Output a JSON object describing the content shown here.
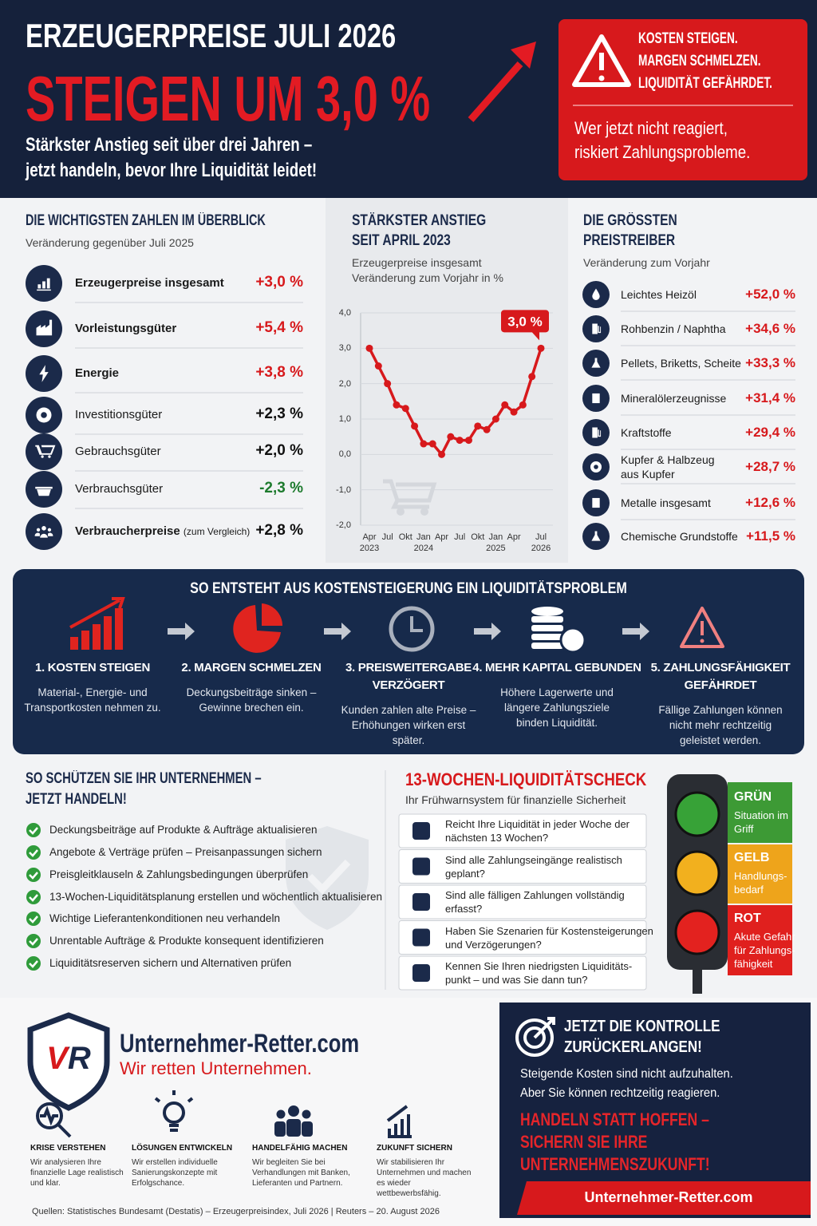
{
  "header": {
    "title": "ERZEUGERPREISE JULI 2026",
    "headline": "STEIGEN UM 3,0 %",
    "subtitle_lines": [
      "Stärkster Anstieg seit über drei Jahren –",
      "jetzt handeln, bevor Ihre Liquidität leidet!"
    ],
    "alert": {
      "lines": [
        "KOSTEN STEIGEN.",
        "MARGEN SCHMELZEN.",
        "LIQUIDITÄT GEFÄHRDET."
      ],
      "message_lines": [
        "Wer jetzt nicht reagiert,",
        "riskiert Zahlungsprobleme."
      ]
    }
  },
  "key_figures": {
    "title": "DIE WICHTIGSTEN ZAHLEN IM ÜBERBLICK",
    "subtitle": "Veränderung gegenüber Juli 2025",
    "rows": [
      {
        "label": "Erzeugerpreise insgesamt",
        "value": "+3,0 %"
      },
      {
        "label": "Vorleistungsgüter",
        "value": "+5,4 %"
      },
      {
        "label": "Energie",
        "value": "+3,8 %"
      },
      {
        "label": "Investitionsgüter",
        "value": "+2,3 %"
      },
      {
        "label": "Gebrauchsgüter",
        "value": "+2,0 %"
      },
      {
        "label": "Verbrauchsgüter",
        "value": "-2,3 %"
      },
      {
        "label": "Verbraucherpreise",
        "note": "(zum Vergleich)",
        "value": "+2,8 %"
      }
    ]
  },
  "chart_data": {
    "type": "line",
    "title_lines": [
      "STÄRKSTER ANSTIEG",
      "SEIT APRIL 2023"
    ],
    "subtitle_lines": [
      "Erzeugerpreise insgesamt",
      "Veränderung zum Vorjahr in %"
    ],
    "categories": [
      "Apr 2023",
      null,
      "Jul",
      null,
      "Okt",
      null,
      "Jan 2024",
      null,
      "Apr",
      null,
      "Jul",
      null,
      "Okt",
      null,
      "Jan 2025",
      null,
      "Apr",
      null,
      null,
      "Jul 2026"
    ],
    "values": [
      3.0,
      2.5,
      2.0,
      1.4,
      1.3,
      0.8,
      0.3,
      0.3,
      0.0,
      0.5,
      0.4,
      0.4,
      0.8,
      0.7,
      1.0,
      1.4,
      1.2,
      1.4,
      2.2,
      3.0
    ],
    "value_labels": [
      null,
      null,
      null,
      null,
      null,
      null,
      null,
      null,
      null,
      null,
      null,
      null,
      null,
      null,
      null,
      null,
      null,
      null,
      null,
      "3,0 %"
    ],
    "color": "#d7191c",
    "ylim": [
      -2,
      4
    ],
    "yticks": [
      {
        "value": -2,
        "label": "-2,0"
      },
      {
        "value": -1,
        "label": "-1,0"
      },
      {
        "value": 0,
        "label": "0,0"
      },
      {
        "value": 1,
        "label": "1,0"
      },
      {
        "value": 2,
        "label": "2,0"
      },
      {
        "value": 3,
        "label": "3,0"
      },
      {
        "value": 4,
        "label": "4,0"
      }
    ],
    "grid": true
  },
  "drivers": {
    "title_lines": [
      "DIE GRÖSSTEN",
      "PREISTREIBER"
    ],
    "subtitle": "Veränderung zum Vorjahr",
    "rows": [
      {
        "label": "Leichtes Heizöl",
        "value": "+52,0 %"
      },
      {
        "label": "Rohbenzin / Naphtha",
        "value": "+34,6 %"
      },
      {
        "label": "Pellets, Briketts, Scheite",
        "value": "+33,3 %"
      },
      {
        "label": "Mineralölerzeugnisse",
        "value": "+31,4 %"
      },
      {
        "label": "Kraftstoffe",
        "value": "+29,4 %"
      },
      {
        "label": "Kupfer & Halbzeug aus Kupfer",
        "value": "+28,7 %"
      },
      {
        "label": "Metalle insgesamt",
        "value": "+12,6 %"
      },
      {
        "label": "Chemische Grundstoffe",
        "value": "+11,5 %"
      }
    ]
  },
  "process": {
    "title": "SO ENTSTEHT AUS KOSTENSTEIGERUNG EIN LIQUIDITÄTSPROBLEM",
    "steps": [
      {
        "title": "1. KOSTEN STEIGEN",
        "text": "Material-, Energie- und Transportkosten nehmen zu."
      },
      {
        "title": "2. MARGEN SCHMELZEN",
        "text": "Deckungsbeiträge sinken – Gewinne brechen ein."
      },
      {
        "title": "3. PREISWEITERGABE VERZÖGERT",
        "text": "Kunden zahlen alte Preise – Erhöhungen wirken erst später."
      },
      {
        "title": "4. MEHR KAPITAL GEBUNDEN",
        "text": "Höhere Lagerwerte und längere Zahlungsziele binden Liquidität."
      },
      {
        "title": "5. ZAHLUNGSFÄHIGKEIT GEFÄHRDET",
        "text": "Fällige Zahlungen können nicht mehr rechtzeitig geleistet werden."
      }
    ]
  },
  "actions": {
    "title_lines": [
      "SO SCHÜTZEN SIE IHR UNTERNEHMEN –",
      "JETZT HANDELN!"
    ],
    "items": [
      "Deckungsbeiträge auf Produkte & Aufträge aktualisieren",
      "Angebote & Verträge prüfen – Preisanpassungen sichern",
      "Preisgleitklauseln & Zahlungsbedingungen überprüfen",
      "13-Wochen-Liquiditätsplanung erstellen und wöchentlich aktualisieren",
      "Wichtige Lieferantenkonditionen neu verhandeln",
      "Unrentable Aufträge & Produkte konsequent identifizieren",
      "Liquiditätsreserven sichern und Alternativen prüfen"
    ]
  },
  "check": {
    "title": "13-WOCHEN-LIQUIDITÄTSCHECK",
    "subtitle": "Ihr Frühwarnsystem für finanzielle Sicherheit",
    "questions": [
      [
        "Reicht Ihre Liquidität in jeder Woche der",
        "nächsten 13 Wochen?"
      ],
      [
        "Sind alle Zahlungseingänge realistisch",
        "geplant?"
      ],
      [
        "Sind alle fälligen Zahlungen vollständig",
        "erfasst?"
      ],
      [
        "Haben Sie Szenarien für Kostensteigerungen",
        "und Verzögerungen?"
      ],
      [
        "Kennen Sie Ihren niedrigsten Liquiditäts-",
        "punkt – und was Sie dann tun?"
      ]
    ]
  },
  "traffic_light": [
    {
      "label": "GRÜN",
      "text_lines": [
        "Situation im",
        "Griff"
      ]
    },
    {
      "label": "GELB",
      "text_lines": [
        "Handlungs-",
        "bedarf"
      ]
    },
    {
      "label": "ROT",
      "text_lines": [
        "Akute Gefahr",
        "für Zahlungs-",
        "fähigkeit"
      ]
    }
  ],
  "brand": {
    "logo": "VR",
    "name": "Unternehmer-Retter.com",
    "tagline": "Wir retten Unternehmen.",
    "features": [
      {
        "title": "KRISE VERSTEHEN",
        "text": "Wir analysieren Ihre finanzielle Lage realistisch und klar."
      },
      {
        "title": "LÖSUNGEN ENTWICKELN",
        "text": "Wir erstellen individuelle Sanierungskonzepte mit Erfolgschance."
      },
      {
        "title": "HANDELFÄHIG MACHEN",
        "text": "Wir begleiten Sie bei Verhandlungen mit Banken, Lieferanten und Partnern."
      },
      {
        "title": "ZUKUNFT SICHERN",
        "text": "Wir stabilisieren Ihr Unternehmen und machen es wieder wettbewerbsfähig."
      }
    ]
  },
  "cta": {
    "title_lines": [
      "JETZT DIE KONTROLLE",
      "ZURÜCKERLANGEN!"
    ],
    "text_lines": [
      "Steigende Kosten sind nicht aufzuhalten.",
      "Aber Sie können rechtzeitig reagieren."
    ],
    "slogan_lines": [
      "HANDELN STATT HOFFEN –",
      "SICHERN SIE IHRE",
      "UNTERNEHMENSZUKUNFT!"
    ],
    "url": "Unternehmer-Retter.com"
  },
  "source": "Quellen: Statistisches Bundesamt (Destatis) – Erzeugerpreisindex, Juli 2026 | Reuters – 20. August 2026"
}
